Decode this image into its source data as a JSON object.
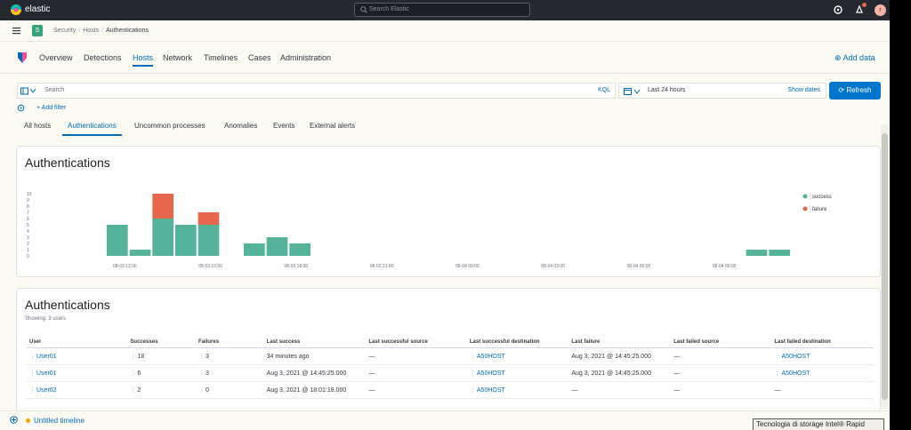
{
  "app": {
    "brand": "elastic",
    "search_placeholder": "Search Elastic",
    "avatar_initial": "r"
  },
  "breadcrumbs": [
    "Security",
    "Hosts",
    "Authentications"
  ],
  "space_badge": "S",
  "nav_tabs": [
    {
      "label": "Overview",
      "active": false
    },
    {
      "label": "Detections",
      "active": false
    },
    {
      "label": "Hosts",
      "active": true
    },
    {
      "label": "Network",
      "active": false
    },
    {
      "label": "Timelines",
      "active": false
    },
    {
      "label": "Cases",
      "active": false
    },
    {
      "label": "Administration",
      "active": false
    }
  ],
  "add_data": "Add data",
  "query": {
    "placeholder": "Search",
    "language": "KQL",
    "date_range": "Last 24 hours",
    "show_dates": "Show dates",
    "refresh": "Refresh",
    "add_filter": "+ Add filter"
  },
  "sub_tabs": [
    {
      "label": "All hosts",
      "active": false
    },
    {
      "label": "Authentications",
      "active": true
    },
    {
      "label": "Uncommon processes",
      "active": false
    },
    {
      "label": "Anomalies",
      "active": false
    },
    {
      "label": "Events",
      "active": false
    },
    {
      "label": "External alerts",
      "active": false
    }
  ],
  "histogram_panel": {
    "title": "Authentications"
  },
  "chart_data": {
    "type": "bar",
    "stacked": true,
    "title": "Authentications",
    "y_ticks": [
      0,
      1,
      2,
      3,
      4,
      5,
      6,
      7,
      8,
      9,
      10
    ],
    "ylim": [
      0,
      10
    ],
    "x_tick_labels": [
      "08-03 12:00",
      "08-03 15:00",
      "08-03 18:00",
      "08-03 21:00",
      "08-04 00:00",
      "08-04 03:00",
      "08-04 06:00",
      "08-04 09:00"
    ],
    "bar_slots": 30,
    "series": [
      {
        "name": "success",
        "color": "#54b399",
        "values": [
          5,
          1,
          6,
          5,
          5,
          0,
          2,
          3,
          2,
          0,
          0,
          0,
          0,
          0,
          0,
          0,
          0,
          0,
          0,
          0,
          0,
          0,
          0,
          0,
          0,
          0,
          0,
          0,
          1,
          1
        ]
      },
      {
        "name": "failure",
        "color": "#e7664c",
        "values": [
          0,
          0,
          4,
          0,
          2,
          0,
          0,
          0,
          0,
          0,
          0,
          0,
          0,
          0,
          0,
          0,
          0,
          0,
          0,
          0,
          0,
          0,
          0,
          0,
          0,
          0,
          0,
          0,
          0,
          0
        ]
      }
    ],
    "legend": [
      "success",
      "failure"
    ],
    "legend_position": "right"
  },
  "table_panel": {
    "title": "Authentications",
    "showing": "Showing: 3 users",
    "columns": [
      "User",
      "Successes",
      "Failures",
      "Last success",
      "Last successful source",
      "Last successful destination",
      "Last failure",
      "Last failed source",
      "Last failed destination"
    ],
    "rows": [
      [
        "User01",
        "18",
        "3",
        "34 minutes ago",
        "—",
        "A50HOST",
        "Aug 3, 2021 @ 14:45:25.000",
        "—",
        "A50HOST"
      ],
      [
        "User01",
        "6",
        "3",
        "Aug 3, 2021 @ 14:45:25.000",
        "—",
        "A50HOST",
        "Aug 3, 2021 @ 14:45:25.000",
        "—",
        "A50HOST"
      ],
      [
        "User02",
        "2",
        "0",
        "Aug 3, 2021 @ 18:01:18.000",
        "—",
        "A50HOST",
        "—",
        "—",
        "—"
      ]
    ]
  },
  "timeline": {
    "label": "Untitled timeline"
  },
  "tooltip": "Tecnologia di storage Intel® Rapid"
}
